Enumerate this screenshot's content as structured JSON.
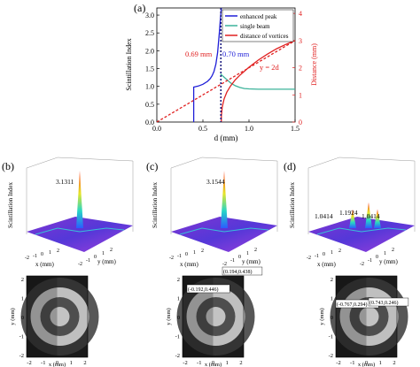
{
  "chart_data": [
    {
      "panel": "(a)",
      "type": "line",
      "xlabel": "d (mm)",
      "ylabel": "Scintillation Index",
      "y2label": "Distance (mm)",
      "xlim": [
        0,
        1.5
      ],
      "ylim": [
        0,
        3.2
      ],
      "y2lim": [
        0,
        4.2
      ],
      "xticks": [
        "0.0",
        "0.5",
        "1.0",
        "1.5"
      ],
      "yticks": [
        "0.0",
        "0.5",
        "1.0",
        "1.5",
        "2.0",
        "2.5",
        "3.0"
      ],
      "y2ticks": [
        "0",
        "1",
        "2",
        "3",
        "4"
      ],
      "legend": [
        "enhanced peak",
        "single beam",
        "distance of vortices"
      ],
      "legend_position": "top-right",
      "colors": {
        "enhanced": "#1f1fd8",
        "single": "#3cb39a",
        "distance": "#e02020",
        "marker": "#10107a"
      },
      "annotations": {
        "left": "0.69 mm",
        "right": "0.70 mm",
        "line_eq": "y = 2d"
      },
      "series": [
        {
          "name": "enhanced peak",
          "axis": "left",
          "x": [
            0.4,
            0.4,
            0.45,
            0.5,
            0.55,
            0.58,
            0.6,
            0.62,
            0.64,
            0.66,
            0.68,
            0.69,
            0.7
          ],
          "y": [
            0.0,
            0.98,
            1.01,
            1.06,
            1.14,
            1.22,
            1.3,
            1.42,
            1.62,
            1.95,
            2.55,
            2.92,
            3.2
          ]
        },
        {
          "name": "single beam",
          "axis": "left",
          "x": [
            0.69,
            0.72,
            0.76,
            0.8,
            0.85,
            0.9,
            0.95,
            1.0,
            1.1,
            1.2,
            1.3,
            1.4,
            1.5
          ],
          "y": [
            1.35,
            1.28,
            1.19,
            1.1,
            1.02,
            0.97,
            0.94,
            0.93,
            0.92,
            0.92,
            0.92,
            0.92,
            0.92
          ]
        },
        {
          "name": "distance of vortices",
          "axis": "right",
          "x": [
            0.7,
            0.7,
            0.71,
            0.73,
            0.76,
            0.8,
            0.85,
            0.9,
            1.0,
            1.1,
            1.2,
            1.3,
            1.4,
            1.5
          ],
          "y": [
            0.0,
            0.22,
            0.55,
            0.85,
            1.1,
            1.33,
            1.55,
            1.72,
            2.02,
            2.28,
            2.5,
            2.7,
            2.86,
            3.0
          ]
        },
        {
          "name": "y = 2d",
          "axis": "right",
          "style": "dashed",
          "x": [
            0,
            1.5
          ],
          "y": [
            0,
            3.0
          ]
        }
      ],
      "vline_x": 0.695
    },
    {
      "panel": "(b)",
      "type": "surface",
      "zlabel": "Scintillation Index",
      "xlabel": "x (mm)",
      "ylabel": "y (mm)",
      "x_ticks": [
        "-2",
        "-1",
        "0",
        "1",
        "2"
      ],
      "y_ticks": [
        "-2",
        "-1",
        "0",
        "1",
        "2"
      ],
      "peak_labels": [
        "3.1311"
      ],
      "phase": {
        "xlabel": "x (mm)",
        "ylabel": "y (mm)",
        "ticks": [
          "-2",
          "-1",
          "0",
          "1",
          "2"
        ],
        "points": []
      }
    },
    {
      "panel": "(c)",
      "type": "surface",
      "zlabel": "Scintillation Index",
      "xlabel": "x (mm)",
      "ylabel": "y (mm)",
      "x_ticks": [
        "-2",
        "-1",
        "0",
        "1",
        "2"
      ],
      "y_ticks": [
        "-2",
        "-1",
        "0",
        "1",
        "2"
      ],
      "peak_labels": [
        "3.1544"
      ],
      "phase": {
        "xlabel": "x (mm)",
        "ylabel": "y (mm)",
        "ticks": [
          "-2",
          "-1",
          "0",
          "1",
          "2"
        ],
        "points": [
          "(0.194,0.438)",
          "(-0.192,0.446)"
        ]
      }
    },
    {
      "panel": "(d)",
      "type": "surface",
      "zlabel": "Scintillation Index",
      "xlabel": "x (mm)",
      "ylabel": "y (mm)",
      "x_ticks": [
        "-2",
        "-1",
        "0",
        "1",
        "2"
      ],
      "y_ticks": [
        "-2",
        "-1",
        "0",
        "1",
        "2"
      ],
      "peak_labels": [
        "1.1924",
        "1.0414",
        "1.0414"
      ],
      "phase": {
        "xlabel": "x (mm)",
        "ylabel": "y (mm)",
        "ticks": [
          "-2",
          "-1",
          "0",
          "1",
          "2"
        ],
        "points": [
          "(-0.767,0.294)",
          "(0.743,0.246)"
        ]
      }
    }
  ]
}
